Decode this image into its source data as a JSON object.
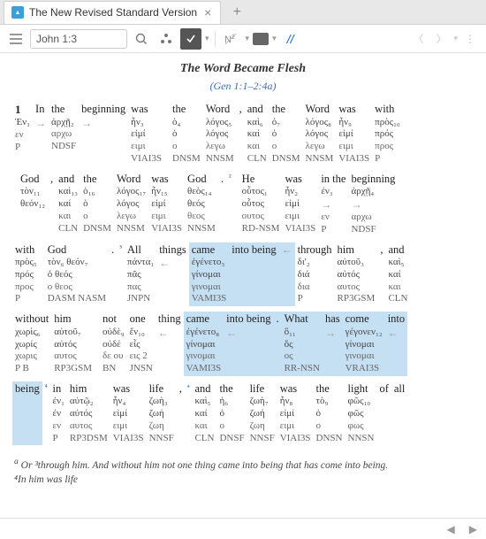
{
  "tab": {
    "title": "The New Revised Standard Version"
  },
  "toolbar": {
    "reference": "John 1:3"
  },
  "heading": {
    "title": "The Word Became Flesh",
    "subtitle": "(Gen 1:1–2:4a)"
  },
  "rows": [
    {
      "en": [
        [
          "1",
          "v"
        ],
        [
          "In"
        ],
        [
          "the"
        ],
        [
          "beginning"
        ],
        [
          "was"
        ],
        [
          "",
          "a"
        ],
        [
          "the"
        ],
        [
          "Word"
        ],
        [
          ","
        ],
        [
          "and"
        ],
        [
          "the"
        ],
        [
          "Word"
        ],
        [
          "was"
        ],
        [
          "with"
        ]
      ],
      "hl": [],
      "il": [
        [
          "Ἐν₁",
          "",
          "εν",
          "P"
        ],
        [
          "→",
          "",
          "",
          ""
        ],
        [
          "ἀρχῇ₂",
          "",
          "αρχω",
          "NDSF"
        ],
        [
          "→",
          "",
          "",
          ""
        ],
        [
          "ἦν₃",
          "εἰμί",
          "ειμι",
          "VIAI3S"
        ],
        [
          "",
          "",
          "",
          ""
        ],
        [
          "ὁ₄",
          "ὁ",
          "ο",
          "DNSM"
        ],
        [
          "λόγος₅",
          "λόγος",
          "λεγω",
          "NNSM"
        ],
        [
          "",
          "",
          "",
          ""
        ],
        [
          "καὶ₆",
          "καί",
          "και",
          "CLN"
        ],
        [
          "ὁ₇",
          "ὁ",
          "ο",
          "DNSM"
        ],
        [
          "λόγος₈",
          "λόγος",
          "λεγω",
          "NNSM"
        ],
        [
          "ἦν₉",
          "εἰμί",
          "ειμι",
          "VIAI3S"
        ],
        [
          "πρὸς₁₀",
          "πρός",
          "προς",
          "P"
        ]
      ]
    },
    {
      "en": [
        [
          "",
          "p"
        ],
        [
          "God"
        ],
        [
          ","
        ],
        [
          "and"
        ],
        [
          "the"
        ],
        [
          "Word"
        ],
        [
          "was"
        ],
        [
          "God"
        ],
        [
          "."
        ],
        [
          "²",
          "s"
        ],
        [
          "",
          "a"
        ],
        [
          "He"
        ],
        [
          "was"
        ],
        [
          "in the"
        ],
        [
          "beginning"
        ]
      ],
      "hl": [],
      "il": [
        [
          "",
          "",
          "",
          ""
        ],
        [
          "τὸν₁₁",
          "θεόν₁₂",
          "",
          ""
        ],
        [
          "",
          "",
          "",
          ""
        ],
        [
          "καὶ₁₃",
          "καί",
          "και",
          "CLN"
        ],
        [
          "ὁ₁₆",
          "ὁ",
          "ο",
          "DNSM"
        ],
        [
          "λόγος₁₇",
          "λόγος",
          "λεγω",
          "NNSM"
        ],
        [
          "ἦν₁₅",
          "εἰμί",
          "ειμι",
          "VIAI3S"
        ],
        [
          "θεὸς₁₄",
          "θεός",
          "θεος",
          "NNSM"
        ],
        [
          "",
          "",
          "",
          ""
        ],
        [
          "",
          "",
          "",
          ""
        ],
        [
          "",
          "",
          "",
          ""
        ],
        [
          "οὗτος₁",
          "οὗτος",
          "ουτος",
          "RD-NSM"
        ],
        [
          "ἦν₂",
          "εἰμί",
          "ειμι",
          "VIAI3S"
        ],
        [
          "ἐν₃",
          "→",
          "εν",
          "P"
        ],
        [
          "ἀρχῇ₄",
          "→",
          "αρχω",
          "NDSF"
        ]
      ],
      "il2": [
        [
          "ὁ θεός",
          "",
          "ο θεος",
          "DASM"
        ],
        [
          "",
          "",
          "",
          "NASM"
        ]
      ]
    },
    {
      "en": [
        [
          "with"
        ],
        [
          "",
          "p"
        ],
        [
          "God"
        ],
        [
          "."
        ],
        [
          "³",
          "s"
        ],
        [
          "All"
        ],
        [
          "things"
        ],
        [
          "came"
        ],
        [
          "into being"
        ],
        [
          "",
          "a"
        ],
        [
          "through"
        ],
        [
          "him"
        ],
        [
          ","
        ],
        [
          "and"
        ]
      ],
      "hl": [
        7,
        8,
        9
      ],
      "il": [
        [
          "πρὸς₅",
          "πρός",
          "προς",
          "P"
        ],
        [
          "",
          "",
          "",
          ""
        ],
        [
          "τὸν₆ θεόν₇",
          "ὁ θεός",
          "ο θεος",
          "DASM NASM"
        ],
        [
          "",
          "",
          "",
          ""
        ],
        [
          "",
          "",
          "",
          ""
        ],
        [
          "πάντα₁",
          "πᾶς",
          "πας",
          "JNPN"
        ],
        [
          "←",
          "",
          "",
          ""
        ],
        [
          "ἐγένετο₃",
          "γίνομαι",
          "γινομαι",
          "VAMI3S"
        ],
        [
          "",
          "",
          "",
          ""
        ],
        [
          "←",
          "",
          "",
          ""
        ],
        [
          "δι'₂",
          "διά",
          "δια",
          "P"
        ],
        [
          "αὐτοῦ₃",
          "αὐτός",
          "αυτος",
          "RP3GSM"
        ],
        [
          "",
          "",
          "",
          ""
        ],
        [
          "καὶ₅",
          "καί",
          "και",
          "CLN"
        ]
      ]
    },
    {
      "en": [
        [
          "without"
        ],
        [
          "him"
        ],
        [
          "",
          "p"
        ],
        [
          "not"
        ],
        [
          "one"
        ],
        [
          "thing"
        ],
        [
          "came"
        ],
        [
          "into being"
        ],
        [
          "."
        ],
        [
          "What"
        ],
        [
          "has"
        ],
        [
          "come"
        ],
        [
          "into"
        ]
      ],
      "hl": [
        6,
        7,
        8,
        9,
        10,
        11,
        12
      ],
      "il": [
        [
          "χωρὶς₆",
          "χωρίς",
          "χωρις",
          "P B"
        ],
        [
          "αὐτοῦ₇",
          "αὐτός",
          "αυτος",
          "RP3GSM"
        ],
        [
          "",
          "",
          "",
          ""
        ],
        [
          "οὐδὲ₉",
          "οὐδέ",
          "δε ου",
          "BN"
        ],
        [
          "ἕν₁₀",
          "εἷς",
          "εις 2",
          "JNSN"
        ],
        [
          "←",
          "",
          "",
          ""
        ],
        [
          "ἐγένετο₈",
          "γίνομαι",
          "γινομαι",
          "VAMI3S"
        ],
        [
          "←",
          "",
          "",
          ""
        ],
        [
          "",
          "",
          "",
          ""
        ],
        [
          "ὃ₁₁",
          "ὅς",
          "ος",
          "RR-NSN"
        ],
        [
          "→",
          "",
          "",
          ""
        ],
        [
          "γέγονεν₁₂",
          "γίνομαι",
          "γινομαι",
          "VRAI3S"
        ],
        [
          "←",
          "",
          "",
          ""
        ]
      ]
    },
    {
      "en": [
        [
          "being"
        ],
        [
          "⁴",
          "s"
        ],
        [
          "in"
        ],
        [
          "him"
        ],
        [
          "was"
        ],
        [
          "life"
        ],
        [
          ",",
          "p"
        ],
        [
          "ᵃ",
          "s"
        ],
        [
          "and"
        ],
        [
          "the"
        ],
        [
          "life"
        ],
        [
          "was"
        ],
        [
          "the"
        ],
        [
          "light"
        ],
        [
          "of"
        ],
        [
          "all"
        ]
      ],
      "hl": [
        0
      ],
      "il": [
        [
          "",
          "",
          "",
          ""
        ],
        [
          "",
          "",
          "",
          ""
        ],
        [
          "ἐν₁",
          "ἐν",
          "εν",
          "P"
        ],
        [
          "αὐτῷ₂",
          "αὐτός",
          "αυτος",
          "RP3DSM"
        ],
        [
          "ἦν₄",
          "εἰμί",
          "ειμι",
          "VIAI3S"
        ],
        [
          "ζωὴ₃",
          "ζωή",
          "ζωη",
          "NNSF"
        ],
        [
          "",
          "",
          "",
          ""
        ],
        [
          "",
          "",
          "",
          ""
        ],
        [
          "καὶ₅",
          "καί",
          "και",
          "CLN"
        ],
        [
          "ἡ₆",
          "ὁ",
          "ο",
          "DNSF"
        ],
        [
          "ζωὴ₇",
          "ζωή",
          "ζωη",
          "NNSF"
        ],
        [
          "ἦν₈",
          "εἰμί",
          "ειμι",
          "VIAI3S"
        ],
        [
          "τὸ₉",
          "ὁ",
          "ο",
          "DNSN"
        ],
        [
          "φῶς₁₀",
          "φῶς",
          "φως",
          "NNSN"
        ],
        [
          "",
          "",
          "",
          ""
        ],
        [
          "",
          "",
          "",
          ""
        ]
      ]
    }
  ],
  "footnotes": {
    "a": "Or ³through him. And without him not one thing came into being that has come into being.",
    "b": "⁴In him was life"
  }
}
